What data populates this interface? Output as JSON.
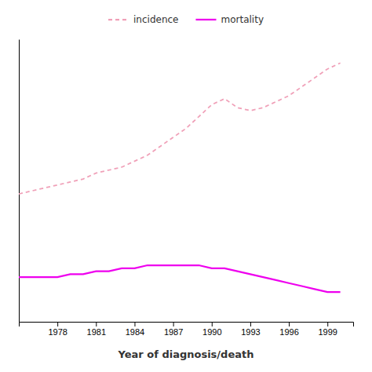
{
  "chart_data": {
    "type": "line",
    "x_label": "Year of diagnosis/death",
    "x": [
      1975,
      1976,
      1977,
      1978,
      1979,
      1980,
      1981,
      1982,
      1983,
      1984,
      1985,
      1986,
      1987,
      1988,
      1989,
      1990,
      1991,
      1992,
      1993,
      1994,
      1995,
      1996,
      1997,
      1998,
      1999,
      2000
    ],
    "series": [
      {
        "name": "incidence",
        "color": "#f0a0b8",
        "line_style": "dashed",
        "values": [
          68,
          69,
          70,
          71,
          72,
          73,
          75,
          76,
          77,
          79,
          81,
          84,
          87,
          90,
          94,
          98,
          100,
          97,
          96,
          97,
          99,
          101,
          104,
          107,
          110,
          112
        ]
      },
      {
        "name": "mortality",
        "color": "#ee00ee",
        "line_style": "solid",
        "values": [
          40,
          40,
          40,
          40,
          41,
          41,
          42,
          42,
          43,
          43,
          44,
          44,
          44,
          44,
          44,
          43,
          43,
          42,
          41,
          40,
          39,
          38,
          37,
          36,
          35,
          35
        ]
      }
    ],
    "xlim": [
      1975,
      2001
    ],
    "xticks": [
      1978,
      1981,
      1984,
      1987,
      1990,
      1993,
      1996,
      1999
    ],
    "ylim": [
      25,
      120
    ],
    "tick_labels": "x",
    "legend": "top"
  }
}
